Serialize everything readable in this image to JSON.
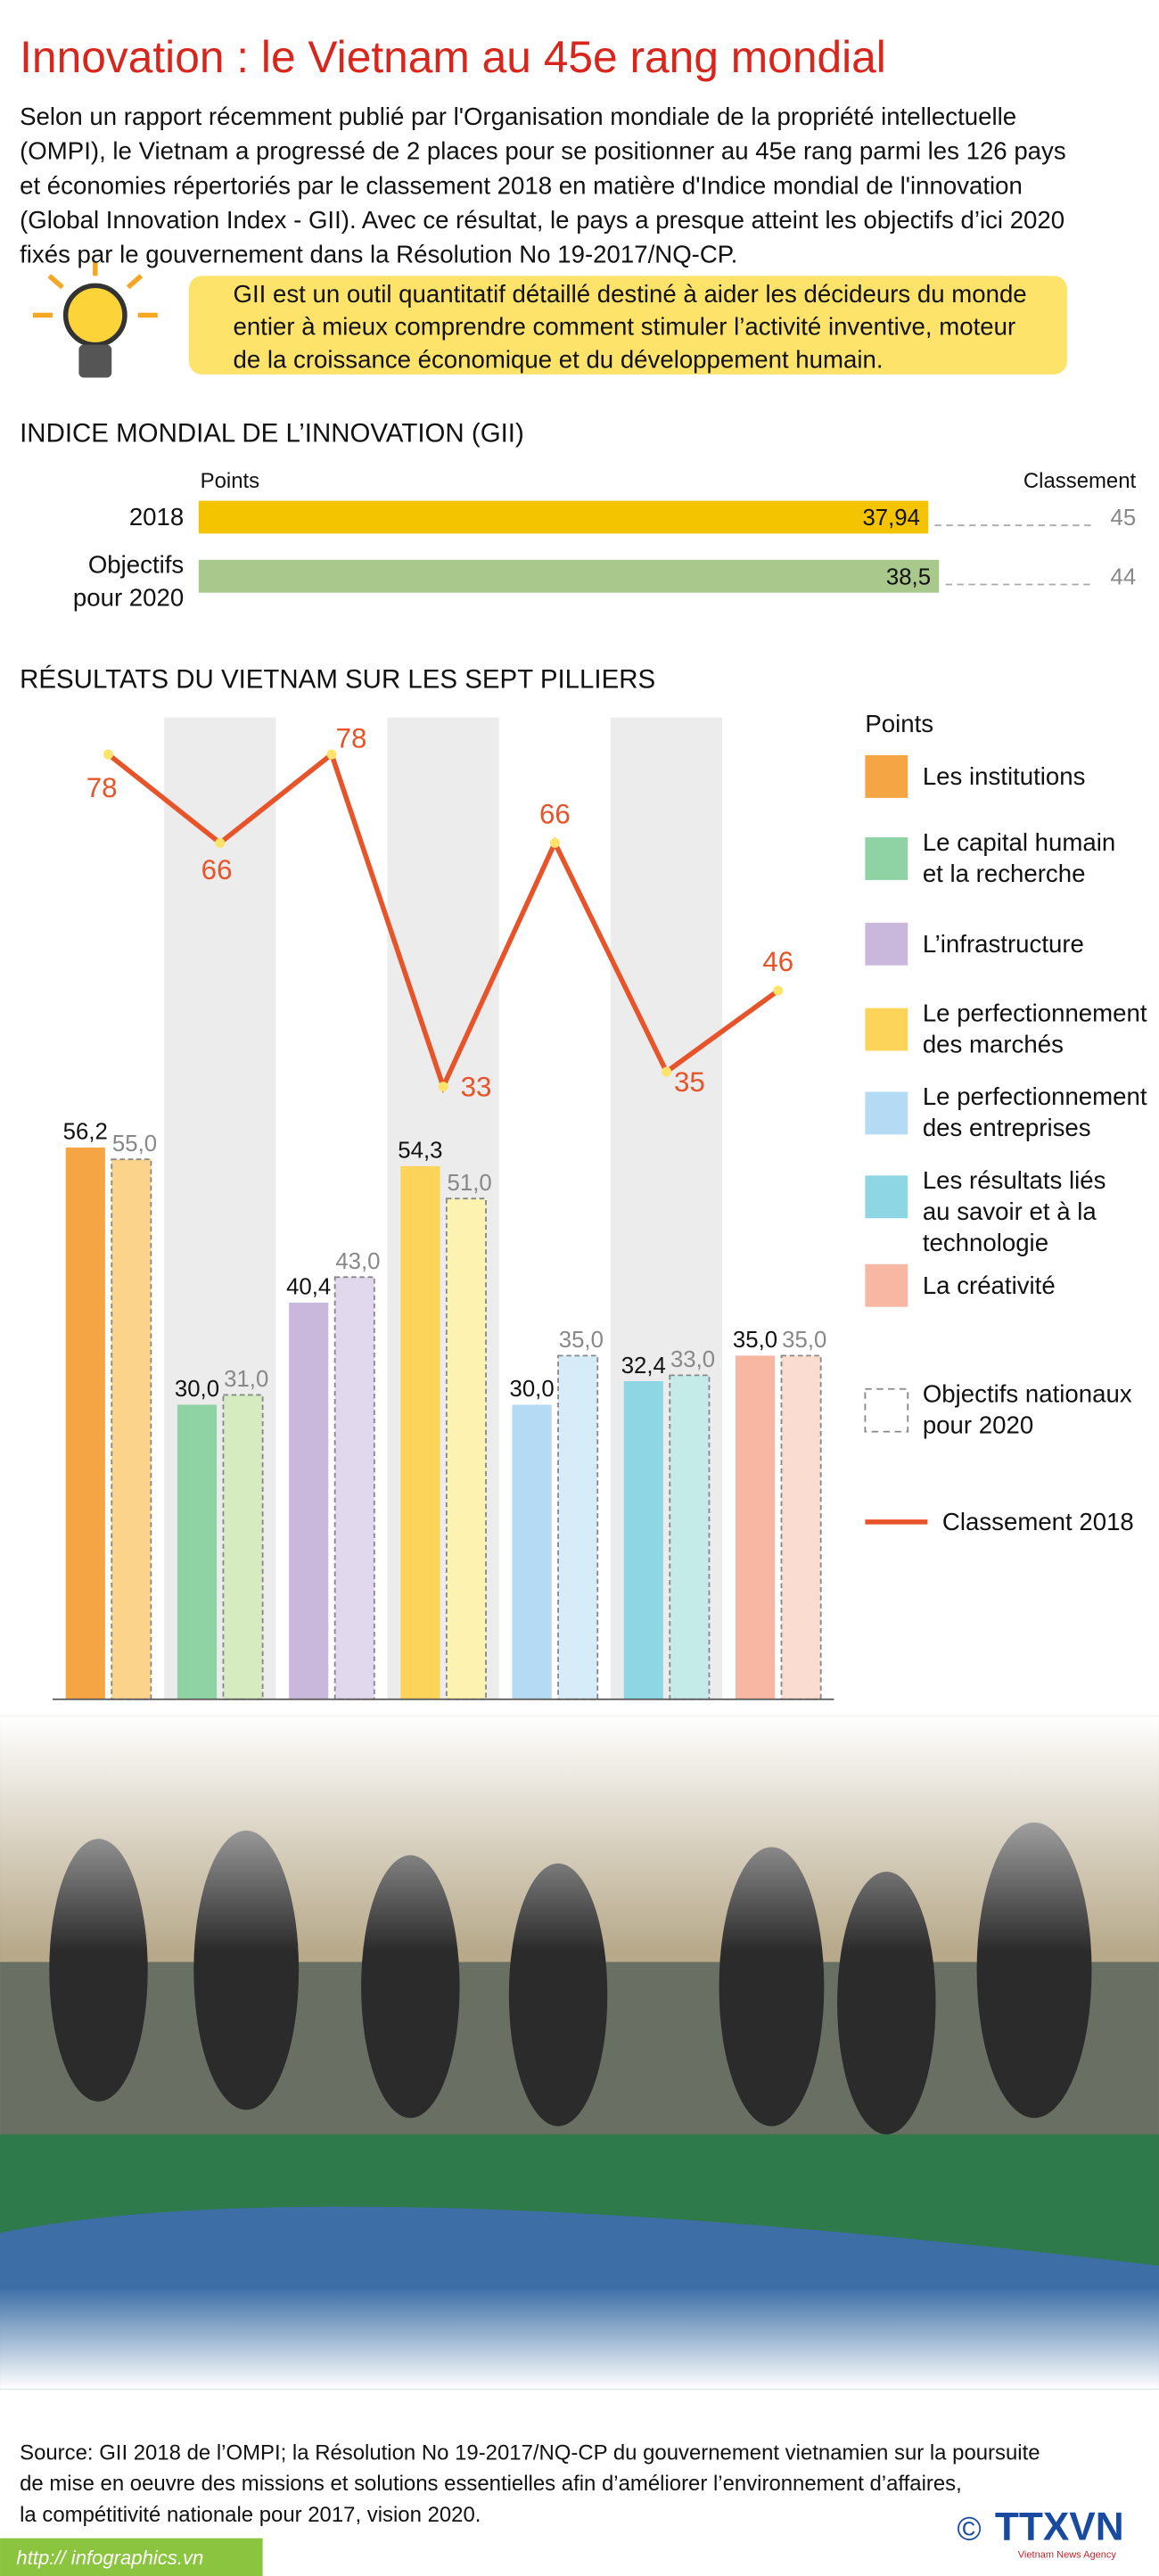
{
  "header": {
    "title": "Innovation : le Vietnam au 45e rang mondial"
  },
  "intro": [
    "Selon un rapport récemment publié par l'Organisation mondiale de la propriété intellectuelle",
    "(OMPI), le Vietnam a progressé de 2 places pour se positionner au 45e rang parmi les 126 pays",
    "et économies répertoriés par le classement 2018 en matière d'Indice mondial de l'innovation",
    "(Global Innovation Index - GII). Avec ce résultat, le pays a presque atteint les objectifs d’ici 2020",
    "fixés par le gouvernement dans la Résolution No 19-2017/NQ-CP."
  ],
  "callout": [
    "GII est un outil quantitatif détaillé destiné à aider les décideurs du monde",
    "entier à mieux comprendre comment stimuler l’activité inventive, moteur",
    "de la croissance économique et du développement humain."
  ],
  "chart_data": [
    {
      "type": "hbar",
      "title": "INDICE MONDIAL DE L’INNOVATION (GII)",
      "value_axis_label": "Points",
      "rank_label": "Classement",
      "categories": [
        "2018",
        "Objectifs pour 2020"
      ],
      "values": [
        37.94,
        38.5
      ],
      "value_labels": [
        "37,94",
        "38,5"
      ],
      "colors": [
        "#f5c400",
        "#a9c98c"
      ],
      "ranks": [
        45,
        44
      ]
    },
    {
      "type": "bar_line",
      "title": "RÉSULTATS DU VIETNAM SUR LES SEPT PILLIERS",
      "categories": [
        "Les institutions",
        "Le capital humain et la recherche",
        "L’infrastructure",
        "Le perfectionnement des marchés",
        "Le perfectionnement des entreprises",
        "Les résultats liés au savoir et à la technologie",
        "La créativité"
      ],
      "ylim": [
        0,
        100
      ],
      "y2lim": [
        -50,
        83
      ],
      "series": [
        {
          "name": "Points",
          "colors": [
            "#f6a545",
            "#8fd3a5",
            "#c9b8dc",
            "#fcd45a",
            "#b5daf3",
            "#8ed6e4",
            "#f8b7a3"
          ],
          "values": [
            56.2,
            30.0,
            40.4,
            54.3,
            30.0,
            32.4,
            35.0
          ],
          "value_labels": [
            "56,2",
            "30,0",
            "40,4",
            "54,3",
            "30,0",
            "32,4",
            "35,0"
          ]
        },
        {
          "name": "Objectifs nationaux pour 2020",
          "colors": [
            "#fbd38a",
            "#d6ecc0",
            "#e2d8ee",
            "#fdf2b0",
            "#d6ecf9",
            "#c5ebe8",
            "#fbdcd1"
          ],
          "values": [
            55.0,
            31.0,
            43.0,
            51.0,
            35.0,
            33.0,
            35.0
          ],
          "value_labels": [
            "55,0",
            "31,0",
            "43,0",
            "51,0",
            "35,0",
            "33,0",
            "35,0"
          ]
        },
        {
          "name": "Classement 2018",
          "color": "#e8542a",
          "axis": "y2",
          "values": [
            78,
            66,
            78,
            33,
            66,
            35,
            46
          ]
        }
      ]
    }
  ],
  "source": [
    "Source: GII 2018 de l’OMPI; la Résolution No 19-2017/NQ-CP du gouvernement vietnamien sur la poursuite",
    "de mise en oeuvre des missions et solutions essentielles afin d’améliorer l’environnement d’affaires,",
    "la compétitivité nationale pour 2017, vision 2020."
  ],
  "footer": {
    "url": "http:// infographics.vn",
    "copyright": "©",
    "logo": "TTXVN",
    "agency": "Vietnam News Agency"
  }
}
